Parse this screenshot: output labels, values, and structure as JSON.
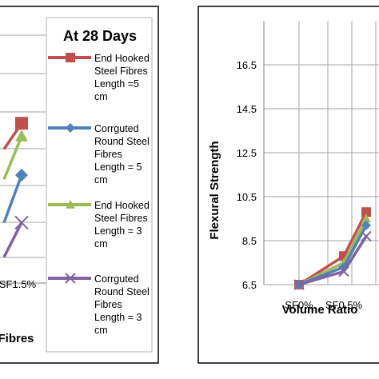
{
  "chart_data": [
    {
      "type": "line",
      "title": "At 28 Days",
      "xlabel": "Fibres",
      "ylabel": "",
      "categories": [
        "SF1.5%"
      ],
      "legend_placement": "right",
      "grid": true,
      "series": [
        {
          "name": "End Hooked Steel Fibres Length =5 cm",
          "color": "#c0504d",
          "marker": "square",
          "points": [
            [
              0.5,
              9.6
            ],
            [
              1.5,
              10.2
            ]
          ]
        },
        {
          "name": "Corrguted Round Steel Fibres Length = 5 cm",
          "color": "#4f81bd",
          "marker": "diamond",
          "points": [
            [
              0.5,
              7.9
            ],
            [
              1.5,
              9.0
            ]
          ]
        },
        {
          "name": "End Hooked Steel Fibres Length = 3 cm",
          "color": "#9bbb59",
          "marker": "triangle",
          "points": [
            [
              0.5,
              8.9
            ],
            [
              1.5,
              9.9
            ]
          ]
        },
        {
          "name": "Corrguted Round Steel Fibres Length = 3 cm",
          "color": "#8064a2",
          "marker": "x",
          "points": [
            [
              0.5,
              7.1
            ],
            [
              1.5,
              7.9
            ]
          ]
        }
      ],
      "legend_lines": [
        [
          "End Hooked",
          "Steel Fibres",
          "Length =5",
          "cm"
        ],
        [
          "Corrguted",
          "Round Steel",
          "Fibres",
          "Length = 5",
          "cm"
        ],
        [
          "End Hooked",
          "Steel Fibres",
          "Length = 3",
          "cm"
        ],
        [
          "Corrguted",
          "Round Steel",
          "Fibres",
          "Length = 3",
          "cm"
        ]
      ]
    },
    {
      "type": "line",
      "title": "",
      "xlabel": "Volume Ratio",
      "ylabel": "Flexural Strength",
      "categories": [
        "SF0%",
        "SF0.5%"
      ],
      "ylim": [
        6.5,
        18.5
      ],
      "yticks": [
        "6.5",
        "8.5",
        "10.5",
        "12.5",
        "14.5",
        "16.5"
      ],
      "grid": true,
      "series": [
        {
          "name": "End Hooked Steel Fibres Length =5 cm",
          "color": "#c0504d",
          "marker": "square",
          "points": [
            [
              0,
              6.5
            ],
            [
              1,
              7.8
            ],
            [
              1.5,
              9.8
            ]
          ]
        },
        {
          "name": "End Hooked Steel Fibres Length = 3 cm",
          "color": "#9bbb59",
          "marker": "triangle",
          "points": [
            [
              0,
              6.5
            ],
            [
              1,
              7.5
            ],
            [
              1.5,
              9.5
            ]
          ]
        },
        {
          "name": "Corrguted Round Steel Fibres Length = 5 cm",
          "color": "#4f81bd",
          "marker": "diamond",
          "points": [
            [
              0,
              6.5
            ],
            [
              1,
              7.3
            ],
            [
              1.5,
              9.2
            ]
          ]
        },
        {
          "name": "Corrguted Round Steel Fibres Length = 3 cm",
          "color": "#8064a2",
          "marker": "x",
          "points": [
            [
              0,
              6.5
            ],
            [
              1,
              7.1
            ],
            [
              1.5,
              8.7
            ]
          ]
        }
      ]
    }
  ]
}
